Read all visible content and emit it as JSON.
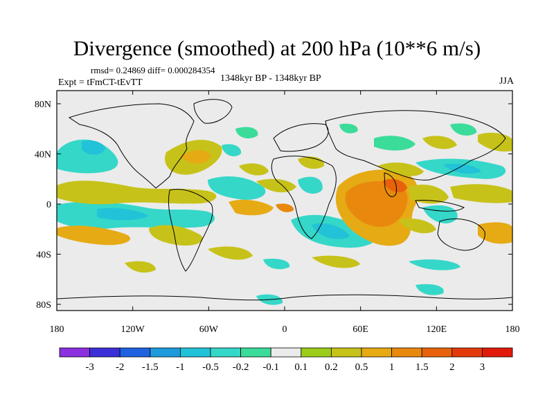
{
  "title": "Divergence (smoothed) at 200 hPa (10**6 m/s)",
  "stats": "rmsd= 0.24869 diff= 0.000284354",
  "experiment": "Expt = tFmCT-tEvTT",
  "period": "1348kyr BP - 1348kyr BP",
  "season": "JJA",
  "axes": {
    "x_ticks": [
      "180",
      "120W",
      "60W",
      "0",
      "60E",
      "120E",
      "180"
    ],
    "y_ticks": [
      "80N",
      "40N",
      "0",
      "40S",
      "80S"
    ]
  },
  "colorbar": {
    "labels": [
      "-3",
      "-2",
      "-1.5",
      "-1",
      "-0.5",
      "-0.2",
      "-0.1",
      "0.1",
      "0.2",
      "0.5",
      "1",
      "1.5",
      "2",
      "3"
    ],
    "colors": [
      "#8c2fe0",
      "#3b2fd8",
      "#1e62e0",
      "#1e9bdc",
      "#22c2d8",
      "#35d7c8",
      "#3bdc9a",
      "#ebebeb",
      "#9ccc1a",
      "#c7c21a",
      "#e6aa14",
      "#e8890e",
      "#e8620c",
      "#e43a0a",
      "#e21a0a"
    ]
  },
  "colors": {
    "map_background": "#ebebeb",
    "coastline": "#000000"
  }
}
